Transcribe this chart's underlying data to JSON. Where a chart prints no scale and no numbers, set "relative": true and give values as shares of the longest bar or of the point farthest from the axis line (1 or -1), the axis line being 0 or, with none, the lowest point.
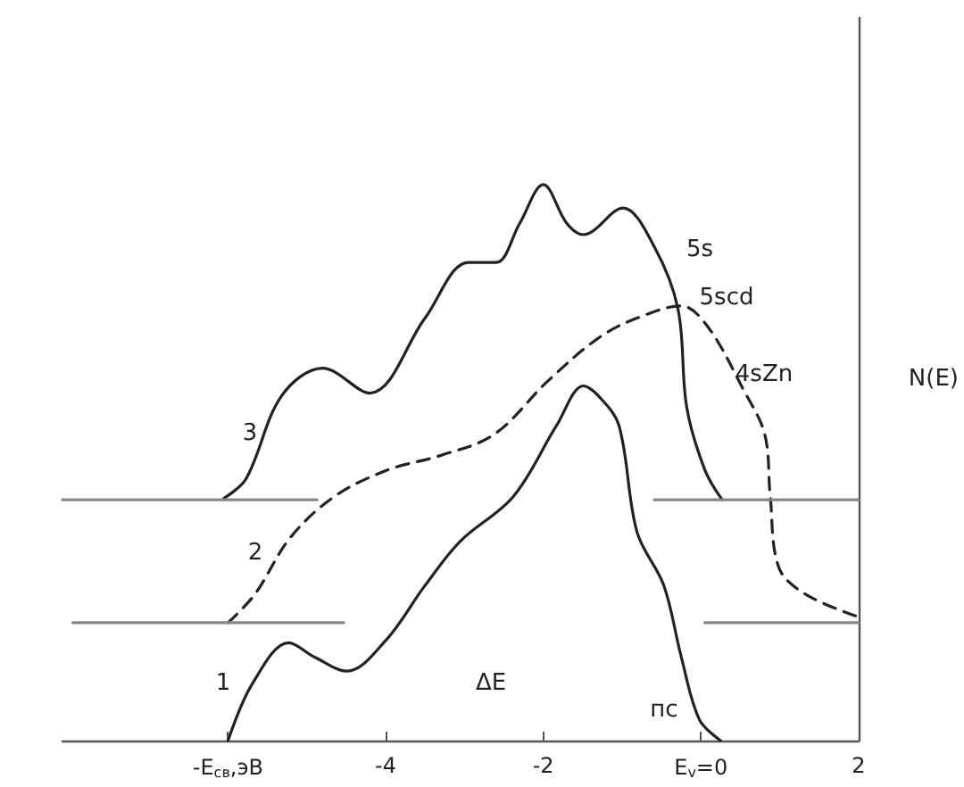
{
  "chart_data": {
    "type": "line",
    "relative": true,
    "ylabel": "N(E)",
    "xlim": [
      -8.1,
      2
    ],
    "xticks": [
      {
        "value": -6,
        "label": "-E$_{св}$,эВ"
      },
      -4,
      -2,
      {
        "value": 0,
        "label": "E$_{v}$=0"
      },
      2
    ],
    "marker": "none",
    "series": [
      {
        "color": "#222222",
        "line_style": "solid",
        "x": [
          -6,
          -5.7,
          -5.23,
          -4.9,
          -4.49,
          -4.0,
          -3.5,
          -3.05,
          -2.38,
          -1.83,
          -1.49,
          -1.3,
          -1.04,
          -0.81,
          -0.47,
          -0.25,
          -0.02,
          0.25
        ],
        "values": [
          0,
          0.1,
          0.176,
          0.15,
          0.125,
          0.18,
          0.279,
          0.359,
          0.439,
          0.567,
          0.638,
          0.62,
          0.567,
          0.375,
          0.279,
          0.151,
          0.038,
          0
        ]
      },
      {
        "color": "#222222",
        "line_style": "dashed",
        "x": [
          -6,
          -5.66,
          -5.21,
          -4.65,
          -3.97,
          -3.3,
          -2.62,
          -1.94,
          -1.26,
          -0.7,
          -0.25,
          0.09,
          0.54,
          0.81,
          0.88,
          0.99,
          1.33,
          1.97
        ],
        "values": [
          0.212,
          0.263,
          0.365,
          0.439,
          0.487,
          0.513,
          0.551,
          0.647,
          0.728,
          0.766,
          0.782,
          0.744,
          0.631,
          0.551,
          0.439,
          0.311,
          0.263,
          0.224
        ]
      },
      {
        "color": "#222222",
        "line_style": "solid",
        "x": [
          -6.05,
          -5.77,
          -5.32,
          -4.8,
          -4.2,
          -3.5,
          -2.95,
          -2.6,
          -2.3,
          -2.0,
          -1.7,
          -1.49,
          -0.99,
          -0.59,
          -0.29,
          -0.18,
          0.05,
          0.27
        ],
        "values": [
          0.436,
          0.471,
          0.62,
          0.67,
          0.625,
          0.76,
          0.86,
          0.86,
          0.93,
          1.0,
          0.93,
          0.91,
          0.958,
          0.888,
          0.776,
          0.6,
          0.487,
          0.433
        ]
      },
      {
        "color": "#888888",
        "line_style": "solid",
        "x": [
          -8.1,
          -4.87
        ],
        "values": [
          0.433,
          0.433
        ]
      },
      {
        "color": "#888888",
        "line_style": "solid",
        "x": [
          -0.59,
          2
        ],
        "values": [
          0.433,
          0.433
        ]
      },
      {
        "color": "#888888",
        "line_style": "solid",
        "x": [
          -7.97,
          -4.53
        ],
        "values": [
          0.212,
          0.212
        ]
      },
      {
        "color": "#888888",
        "line_style": "solid",
        "x": [
          0.05,
          2
        ],
        "values": [
          0.212,
          0.212
        ]
      }
    ],
    "annotations": [
      "1",
      "2",
      "3",
      "5s",
      "5scd",
      "4sZn",
      "пс",
      "ΔE"
    ]
  }
}
